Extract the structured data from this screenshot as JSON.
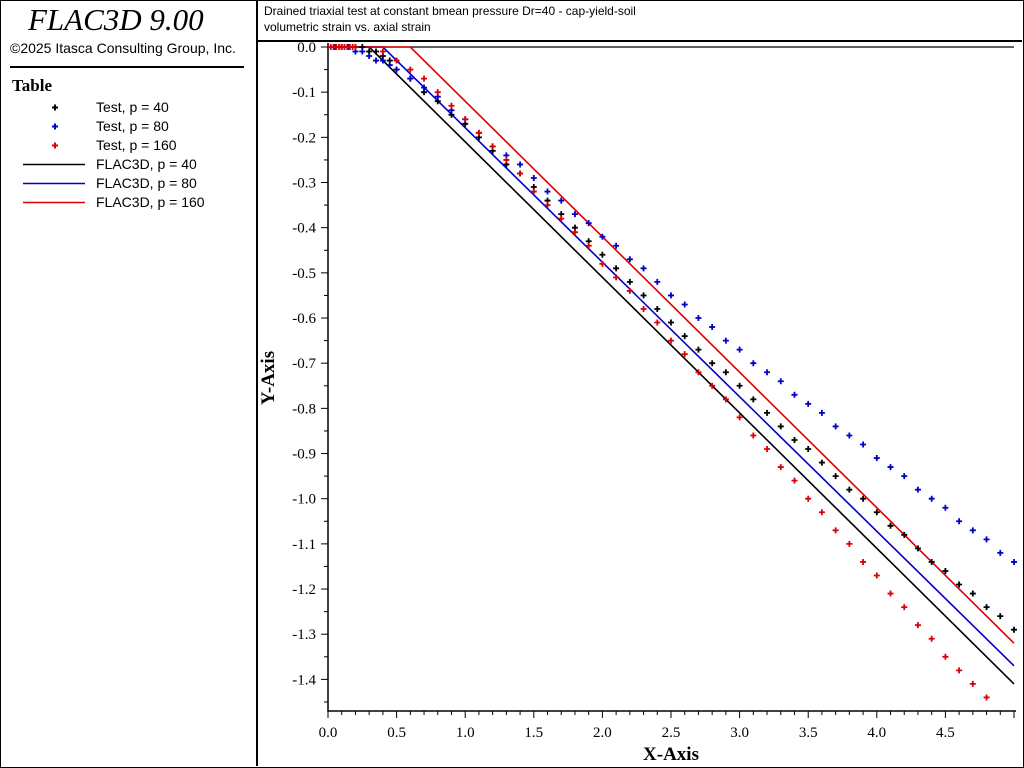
{
  "app": {
    "title": "FLAC3D 9.00",
    "copyright": "©2025 Itasca Consulting Group, Inc."
  },
  "legend": {
    "title": "Table",
    "items": [
      {
        "label": "Test, p = 40",
        "kind": "marker",
        "color": "#000000"
      },
      {
        "label": "Test, p = 80",
        "kind": "marker",
        "color": "#0000cc"
      },
      {
        "label": "Test, p = 160",
        "kind": "marker",
        "color": "#dd0000"
      },
      {
        "label": "FLAC3D, p = 40",
        "kind": "line",
        "color": "#000000"
      },
      {
        "label": "FLAC3D, p = 80",
        "kind": "line",
        "color": "#0000cc"
      },
      {
        "label": "FLAC3D, p = 160",
        "kind": "line",
        "color": "#dd0000"
      }
    ]
  },
  "header": {
    "line1": "Drained triaxial test at constant bmean pressure Dr=40 - cap-yield-soil",
    "line2": "volumetric strain vs. axial strain"
  },
  "chart_data": {
    "type": "line",
    "xlabel": "X-Axis",
    "ylabel": "Y-Axis",
    "xlim": [
      0,
      5.0
    ],
    "ylim": [
      -1.47,
      0.0
    ],
    "xticks": [
      "0.0",
      "0.5",
      "1.0",
      "1.5",
      "2.0",
      "2.5",
      "3.0",
      "3.5",
      "4.0",
      "4.5"
    ],
    "yticks": [
      "0.0",
      "-0.1",
      "-0.2",
      "-0.3",
      "-0.4",
      "-0.5",
      "-0.6",
      "-0.7",
      "-0.8",
      "-0.9",
      "-1.0",
      "-1.1",
      "-1.2",
      "-1.3",
      "-1.4"
    ],
    "grid": false,
    "legend_placement": "left-panel",
    "series": [
      {
        "name": "FLAC3D, p = 40",
        "kind": "line",
        "color": "#000000",
        "x": [
          0.0,
          0.3,
          5.0
        ],
        "y": [
          0.0,
          0.0,
          -1.41
        ]
      },
      {
        "name": "FLAC3D, p = 80",
        "kind": "line",
        "color": "#0000cc",
        "x": [
          0.0,
          0.4,
          5.0
        ],
        "y": [
          0.0,
          0.0,
          -1.37
        ]
      },
      {
        "name": "FLAC3D, p = 160",
        "kind": "line",
        "color": "#dd0000",
        "x": [
          0.0,
          0.6,
          5.0
        ],
        "y": [
          0.0,
          0.0,
          -1.32
        ]
      },
      {
        "name": "Test, p = 40",
        "kind": "marker",
        "color": "#000000",
        "x": [
          0.05,
          0.1,
          0.15,
          0.2,
          0.25,
          0.3,
          0.35,
          0.4,
          0.45,
          0.5,
          0.6,
          0.7,
          0.8,
          0.9,
          1.0,
          1.1,
          1.2,
          1.3,
          1.4,
          1.5,
          1.6,
          1.7,
          1.8,
          1.9,
          2.0,
          2.1,
          2.2,
          2.3,
          2.4,
          2.5,
          2.6,
          2.7,
          2.8,
          2.9,
          3.0,
          3.1,
          3.2,
          3.3,
          3.4,
          3.5,
          3.6,
          3.7,
          3.8,
          3.9,
          4.0,
          4.1,
          4.2,
          4.3,
          4.4,
          4.5,
          4.6,
          4.7,
          4.8,
          4.9,
          5.0
        ],
        "y": [
          0.0,
          0.0,
          0.0,
          0.0,
          0.0,
          -0.01,
          -0.01,
          -0.02,
          -0.03,
          -0.05,
          -0.07,
          -0.1,
          -0.12,
          -0.15,
          -0.17,
          -0.2,
          -0.23,
          -0.26,
          -0.28,
          -0.31,
          -0.34,
          -0.37,
          -0.4,
          -0.43,
          -0.46,
          -0.49,
          -0.52,
          -0.55,
          -0.58,
          -0.61,
          -0.64,
          -0.67,
          -0.7,
          -0.72,
          -0.75,
          -0.78,
          -0.81,
          -0.84,
          -0.87,
          -0.89,
          -0.92,
          -0.95,
          -0.98,
          -1.0,
          -1.03,
          -1.06,
          -1.08,
          -1.11,
          -1.14,
          -1.16,
          -1.19,
          -1.21,
          -1.24,
          -1.26,
          -1.29
        ]
      },
      {
        "name": "Test, p = 80",
        "kind": "marker",
        "color": "#0000cc",
        "x": [
          0.05,
          0.1,
          0.15,
          0.2,
          0.25,
          0.3,
          0.35,
          0.4,
          0.45,
          0.5,
          0.6,
          0.7,
          0.8,
          0.9,
          1.0,
          1.1,
          1.2,
          1.3,
          1.4,
          1.5,
          1.6,
          1.7,
          1.8,
          1.9,
          2.0,
          2.1,
          2.2,
          2.3,
          2.4,
          2.5,
          2.6,
          2.7,
          2.8,
          2.9,
          3.0,
          3.1,
          3.2,
          3.3,
          3.4,
          3.5,
          3.6,
          3.7,
          3.8,
          3.9,
          4.0,
          4.1,
          4.2,
          4.3,
          4.4,
          4.5,
          4.6,
          4.7,
          4.8,
          4.9,
          5.0
        ],
        "y": [
          0.0,
          0.0,
          0.0,
          -0.01,
          -0.01,
          -0.02,
          -0.03,
          -0.03,
          -0.04,
          -0.05,
          -0.07,
          -0.09,
          -0.11,
          -0.14,
          -0.16,
          -0.19,
          -0.22,
          -0.24,
          -0.26,
          -0.29,
          -0.32,
          -0.34,
          -0.37,
          -0.39,
          -0.42,
          -0.44,
          -0.47,
          -0.49,
          -0.52,
          -0.55,
          -0.57,
          -0.6,
          -0.62,
          -0.65,
          -0.67,
          -0.7,
          -0.72,
          -0.74,
          -0.77,
          -0.79,
          -0.81,
          -0.84,
          -0.86,
          -0.88,
          -0.91,
          -0.93,
          -0.95,
          -0.98,
          -1.0,
          -1.02,
          -1.05,
          -1.07,
          -1.09,
          -1.12,
          -1.14
        ]
      },
      {
        "name": "Test, p = 160",
        "kind": "marker",
        "color": "#dd0000",
        "x": [
          0.02,
          0.04,
          0.06,
          0.08,
          0.1,
          0.12,
          0.14,
          0.16,
          0.18,
          0.2,
          0.4,
          0.5,
          0.6,
          0.7,
          0.8,
          0.9,
          1.0,
          1.1,
          1.2,
          1.3,
          1.4,
          1.5,
          1.6,
          1.7,
          1.8,
          1.9,
          2.0,
          2.1,
          2.2,
          2.3,
          2.4,
          2.5,
          2.6,
          2.7,
          2.8,
          2.9,
          3.0,
          3.1,
          3.2,
          3.3,
          3.4,
          3.5,
          3.6,
          3.7,
          3.8,
          3.9,
          4.0,
          4.1,
          4.2,
          4.3,
          4.4,
          4.5,
          4.6,
          4.7,
          4.8
        ],
        "y": [
          0.0,
          0.0,
          0.0,
          0.0,
          0.0,
          0.0,
          0.0,
          0.0,
          0.0,
          0.0,
          -0.01,
          -0.03,
          -0.05,
          -0.07,
          -0.1,
          -0.13,
          -0.16,
          -0.19,
          -0.22,
          -0.25,
          -0.28,
          -0.32,
          -0.35,
          -0.38,
          -0.41,
          -0.44,
          -0.48,
          -0.51,
          -0.54,
          -0.58,
          -0.61,
          -0.65,
          -0.68,
          -0.72,
          -0.75,
          -0.78,
          -0.82,
          -0.86,
          -0.89,
          -0.93,
          -0.96,
          -1.0,
          -1.03,
          -1.07,
          -1.1,
          -1.14,
          -1.17,
          -1.21,
          -1.24,
          -1.28,
          -1.31,
          -1.35,
          -1.38,
          -1.41,
          -1.44
        ]
      }
    ]
  }
}
